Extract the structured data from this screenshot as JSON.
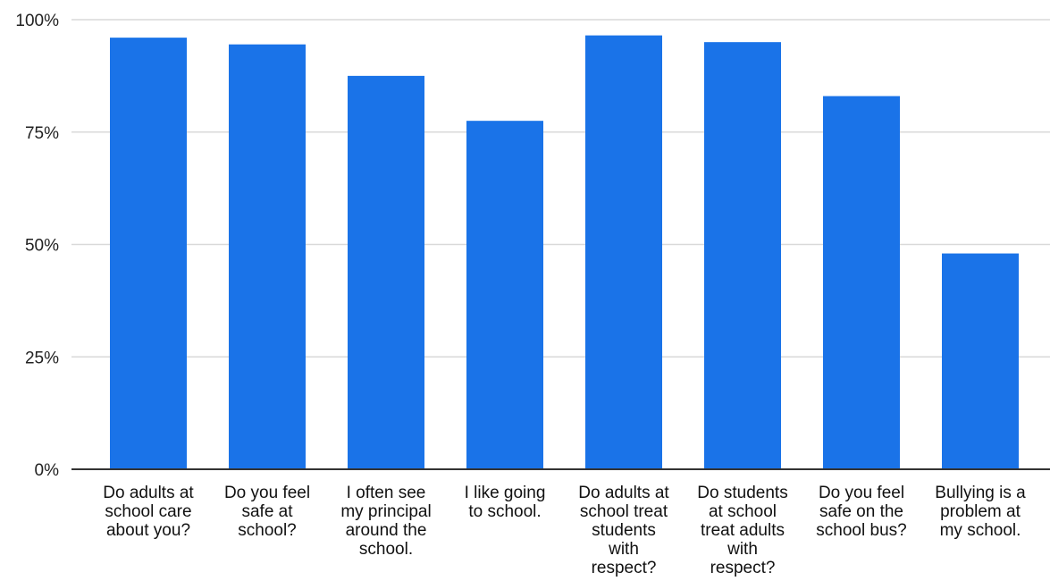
{
  "chart_data": {
    "type": "bar",
    "categories": [
      [
        "Do adults at",
        "school care",
        "about you?"
      ],
      [
        "Do you feel",
        "safe at",
        "school?"
      ],
      [
        "I often see",
        "my principal",
        "around the",
        "school."
      ],
      [
        "I like going",
        "to school."
      ],
      [
        "Do adults at",
        "school treat",
        "students",
        "with",
        "respect?"
      ],
      [
        "Do students",
        "at school",
        "treat adults",
        "with",
        "respect?"
      ],
      [
        "Do you feel",
        "safe on the",
        "school bus?"
      ],
      [
        "Bullying is a",
        "problem at",
        "my school."
      ]
    ],
    "values": [
      96,
      94.5,
      87.5,
      77.5,
      96.5,
      95,
      83,
      48
    ],
    "yticks": [
      "0%",
      "25%",
      "50%",
      "75%",
      "100%"
    ],
    "ylim": [
      0,
      100
    ],
    "title": "",
    "xlabel": "",
    "ylabel": "",
    "grid": true,
    "bar_color": "#1a73e8"
  }
}
